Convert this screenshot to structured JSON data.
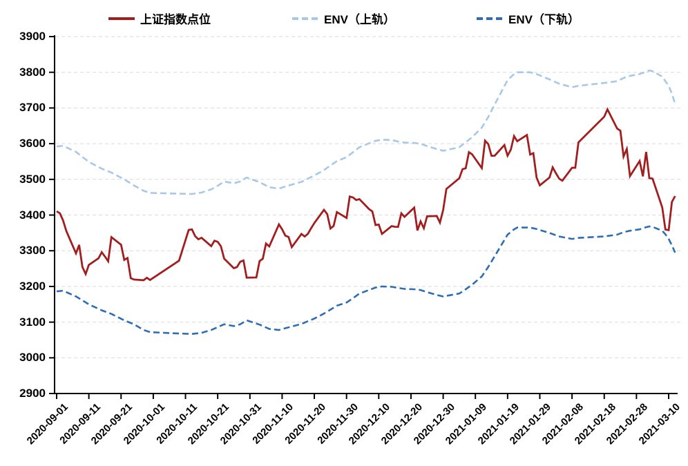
{
  "chart_data": {
    "type": "line",
    "title": "",
    "legend_position": "top",
    "grid": "horizontal-dashed",
    "background": "#ffffff",
    "gridline_color": "#d9d9d9",
    "axis_color": "#000000",
    "y_axis": {
      "min": 2900,
      "max": 3900,
      "step": 100,
      "tick_labels": [
        "3900",
        "3800",
        "3700",
        "3600",
        "3500",
        "3400",
        "3300",
        "3200",
        "3100",
        "3000",
        "2900"
      ]
    },
    "x_axis": {
      "tick_labels": [
        "2020-09-01",
        "2020-09-11",
        "2020-09-21",
        "2020-10-01",
        "2020-10-11",
        "2020-10-21",
        "2020-10-31",
        "2020-11-10",
        "2020-11-20",
        "2020-11-30",
        "2020-12-10",
        "2020-12-20",
        "2020-12-30",
        "2021-01-09",
        "2021-01-19",
        "2021-01-29",
        "2021-02-08",
        "2021-02-18",
        "2021-02-28",
        "2021-03-10"
      ],
      "label_rotation_deg": -45
    },
    "series": [
      {
        "name": "上证指数点位",
        "color": "#A21D1D",
        "style": "solid",
        "width": 2.8,
        "points": [
          [
            "2020-09-01",
            3410.6
          ],
          [
            "2020-09-02",
            3404.8
          ],
          [
            "2020-09-03",
            3385.0
          ],
          [
            "2020-09-04",
            3355.4
          ],
          [
            "2020-09-07",
            3292.6
          ],
          [
            "2020-09-08",
            3316.4
          ],
          [
            "2020-09-09",
            3254.6
          ],
          [
            "2020-09-10",
            3234.8
          ],
          [
            "2020-09-11",
            3260.4
          ],
          [
            "2020-09-14",
            3278.8
          ],
          [
            "2020-09-15",
            3295.7
          ],
          [
            "2020-09-16",
            3283.9
          ],
          [
            "2020-09-17",
            3270.4
          ],
          [
            "2020-09-18",
            3338.1
          ],
          [
            "2020-09-21",
            3316.9
          ],
          [
            "2020-09-22",
            3274.3
          ],
          [
            "2020-09-23",
            3279.7
          ],
          [
            "2020-09-24",
            3223.2
          ],
          [
            "2020-09-25",
            3219.4
          ],
          [
            "2020-09-28",
            3217.5
          ],
          [
            "2020-09-29",
            3224.4
          ],
          [
            "2020-09-30",
            3218.1
          ],
          [
            "2020-10-09",
            3272.1
          ],
          [
            "2020-10-12",
            3358.5
          ],
          [
            "2020-10-13",
            3359.8
          ],
          [
            "2020-10-14",
            3340.8
          ],
          [
            "2020-10-15",
            3332.2
          ],
          [
            "2020-10-16",
            3336.4
          ],
          [
            "2020-10-19",
            3312.7
          ],
          [
            "2020-10-20",
            3328.1
          ],
          [
            "2020-10-21",
            3325.0
          ],
          [
            "2020-10-22",
            3312.5
          ],
          [
            "2020-10-23",
            3278.0
          ],
          [
            "2020-10-26",
            3251.1
          ],
          [
            "2020-10-27",
            3254.3
          ],
          [
            "2020-10-28",
            3269.2
          ],
          [
            "2020-10-29",
            3272.7
          ],
          [
            "2020-10-30",
            3224.5
          ],
          [
            "2020-11-02",
            3225.1
          ],
          [
            "2020-11-03",
            3271.1
          ],
          [
            "2020-11-04",
            3277.4
          ],
          [
            "2020-11-05",
            3320.1
          ],
          [
            "2020-11-06",
            3312.2
          ],
          [
            "2020-11-09",
            3373.7
          ],
          [
            "2020-11-10",
            3360.2
          ],
          [
            "2020-11-11",
            3342.2
          ],
          [
            "2020-11-12",
            3338.7
          ],
          [
            "2020-11-13",
            3310.1
          ],
          [
            "2020-11-16",
            3347.0
          ],
          [
            "2020-11-17",
            3339.9
          ],
          [
            "2020-11-18",
            3347.3
          ],
          [
            "2020-11-19",
            3363.1
          ],
          [
            "2020-11-20",
            3377.7
          ],
          [
            "2020-11-23",
            3414.5
          ],
          [
            "2020-11-24",
            3402.8
          ],
          [
            "2020-11-25",
            3362.3
          ],
          [
            "2020-11-26",
            3369.7
          ],
          [
            "2020-11-27",
            3408.3
          ],
          [
            "2020-11-30",
            3391.8
          ],
          [
            "2020-12-01",
            3451.9
          ],
          [
            "2020-12-02",
            3449.4
          ],
          [
            "2020-12-03",
            3442.1
          ],
          [
            "2020-12-04",
            3444.6
          ],
          [
            "2020-12-07",
            3416.6
          ],
          [
            "2020-12-08",
            3410.2
          ],
          [
            "2020-12-09",
            3372.0
          ],
          [
            "2020-12-10",
            3373.3
          ],
          [
            "2020-12-11",
            3347.2
          ],
          [
            "2020-12-14",
            3369.1
          ],
          [
            "2020-12-15",
            3367.2
          ],
          [
            "2020-12-16",
            3367.0
          ],
          [
            "2020-12-17",
            3404.9
          ],
          [
            "2020-12-18",
            3394.9
          ],
          [
            "2020-12-21",
            3420.6
          ],
          [
            "2020-12-22",
            3356.8
          ],
          [
            "2020-12-23",
            3382.3
          ],
          [
            "2020-12-24",
            3363.1
          ],
          [
            "2020-12-25",
            3396.6
          ],
          [
            "2020-12-28",
            3397.3
          ],
          [
            "2020-12-29",
            3379.0
          ],
          [
            "2020-12-30",
            3414.5
          ],
          [
            "2020-12-31",
            3473.1
          ],
          [
            "2021-01-04",
            3503.0
          ],
          [
            "2021-01-05",
            3528.7
          ],
          [
            "2021-01-06",
            3530.9
          ],
          [
            "2021-01-07",
            3576.2
          ],
          [
            "2021-01-08",
            3570.1
          ],
          [
            "2021-01-11",
            3531.5
          ],
          [
            "2021-01-12",
            3608.3
          ],
          [
            "2021-01-13",
            3598.7
          ],
          [
            "2021-01-14",
            3565.9
          ],
          [
            "2021-01-15",
            3566.4
          ],
          [
            "2021-01-18",
            3596.2
          ],
          [
            "2021-01-19",
            3566.4
          ],
          [
            "2021-01-20",
            3583.1
          ],
          [
            "2021-01-21",
            3621.3
          ],
          [
            "2021-01-22",
            3606.8
          ],
          [
            "2021-01-25",
            3624.2
          ],
          [
            "2021-01-26",
            3569.4
          ],
          [
            "2021-01-27",
            3573.3
          ],
          [
            "2021-01-28",
            3505.2
          ],
          [
            "2021-01-29",
            3483.1
          ],
          [
            "2021-02-01",
            3505.3
          ],
          [
            "2021-02-02",
            3533.7
          ],
          [
            "2021-02-03",
            3517.3
          ],
          [
            "2021-02-04",
            3501.9
          ],
          [
            "2021-02-05",
            3496.3
          ],
          [
            "2021-02-08",
            3532.4
          ],
          [
            "2021-02-09",
            3532.5
          ],
          [
            "2021-02-10",
            3603.5
          ],
          [
            "2021-02-18",
            3675.4
          ],
          [
            "2021-02-19",
            3696.2
          ],
          [
            "2021-02-22",
            3642.4
          ],
          [
            "2021-02-23",
            3636.4
          ],
          [
            "2021-02-24",
            3564.1
          ],
          [
            "2021-02-25",
            3585.1
          ],
          [
            "2021-02-26",
            3509.1
          ],
          [
            "2021-03-01",
            3551.4
          ],
          [
            "2021-03-02",
            3508.6
          ],
          [
            "2021-03-03",
            3576.9
          ],
          [
            "2021-03-04",
            3503.5
          ],
          [
            "2021-03-05",
            3502.0
          ],
          [
            "2021-03-08",
            3421.4
          ],
          [
            "2021-03-09",
            3359.3
          ],
          [
            "2021-03-10",
            3357.7
          ],
          [
            "2021-03-11",
            3436.8
          ],
          [
            "2021-03-12",
            3453.1
          ]
        ]
      },
      {
        "name": "ENV（上轨）",
        "color": "#A8C8E8",
        "style": "dashed",
        "width": 2.6,
        "points": [
          [
            "2020-09-01",
            3592
          ],
          [
            "2020-09-03",
            3594
          ],
          [
            "2020-09-07",
            3577
          ],
          [
            "2020-09-11",
            3549
          ],
          [
            "2020-09-15",
            3530
          ],
          [
            "2020-09-18",
            3519
          ],
          [
            "2020-09-22",
            3500
          ],
          [
            "2020-09-25",
            3483
          ],
          [
            "2020-09-28",
            3468
          ],
          [
            "2020-09-30",
            3462
          ],
          [
            "2020-10-09",
            3460
          ],
          [
            "2020-10-13",
            3459
          ],
          [
            "2020-10-16",
            3463
          ],
          [
            "2020-10-19",
            3472
          ],
          [
            "2020-10-21",
            3482
          ],
          [
            "2020-10-23",
            3494
          ],
          [
            "2020-10-26",
            3489
          ],
          [
            "2020-10-28",
            3494
          ],
          [
            "2020-10-30",
            3505
          ],
          [
            "2020-11-03",
            3492
          ],
          [
            "2020-11-06",
            3478
          ],
          [
            "2020-11-09",
            3474
          ],
          [
            "2020-11-11",
            3480
          ],
          [
            "2020-11-16",
            3493
          ],
          [
            "2020-11-20",
            3511
          ],
          [
            "2020-11-23",
            3526
          ],
          [
            "2020-11-25",
            3539
          ],
          [
            "2020-11-27",
            3551
          ],
          [
            "2020-11-30",
            3562
          ],
          [
            "2020-12-02",
            3576
          ],
          [
            "2020-12-04",
            3590
          ],
          [
            "2020-12-07",
            3601
          ],
          [
            "2020-12-09",
            3608
          ],
          [
            "2020-12-11",
            3611
          ],
          [
            "2020-12-14",
            3610
          ],
          [
            "2020-12-16",
            3606
          ],
          [
            "2020-12-18",
            3603
          ],
          [
            "2020-12-21",
            3602
          ],
          [
            "2020-12-23",
            3600
          ],
          [
            "2020-12-25",
            3593
          ],
          [
            "2020-12-28",
            3585
          ],
          [
            "2020-12-30",
            3580
          ],
          [
            "2021-01-04",
            3590
          ],
          [
            "2021-01-06",
            3604
          ],
          [
            "2021-01-08",
            3618
          ],
          [
            "2021-01-11",
            3645
          ],
          [
            "2021-01-13",
            3675
          ],
          [
            "2021-01-15",
            3710
          ],
          [
            "2021-01-19",
            3778
          ],
          [
            "2021-01-21",
            3795
          ],
          [
            "2021-01-22",
            3800
          ],
          [
            "2021-01-26",
            3800
          ],
          [
            "2021-01-28",
            3795
          ],
          [
            "2021-02-01",
            3780
          ],
          [
            "2021-02-04",
            3768
          ],
          [
            "2021-02-08",
            3758
          ],
          [
            "2021-02-10",
            3762
          ],
          [
            "2021-02-18",
            3770
          ],
          [
            "2021-02-22",
            3775
          ],
          [
            "2021-02-24",
            3784
          ],
          [
            "2021-02-26",
            3790
          ],
          [
            "2021-03-01",
            3795
          ],
          [
            "2021-03-03",
            3802
          ],
          [
            "2021-03-04",
            3805
          ],
          [
            "2021-03-05",
            3803
          ],
          [
            "2021-03-08",
            3788
          ],
          [
            "2021-03-09",
            3775
          ],
          [
            "2021-03-10",
            3762
          ],
          [
            "2021-03-11",
            3740
          ],
          [
            "2021-03-12",
            3712
          ]
        ]
      },
      {
        "name": "ENV（下轨）",
        "color": "#2E6DB4",
        "style": "dashed",
        "width": 2.6,
        "points": [
          [
            "2020-09-01",
            3186
          ],
          [
            "2020-09-03",
            3188
          ],
          [
            "2020-09-07",
            3172
          ],
          [
            "2020-09-11",
            3150
          ],
          [
            "2020-09-15",
            3133
          ],
          [
            "2020-09-18",
            3123
          ],
          [
            "2020-09-22",
            3105
          ],
          [
            "2020-09-25",
            3094
          ],
          [
            "2020-09-28",
            3078
          ],
          [
            "2020-09-30",
            3072
          ],
          [
            "2020-10-09",
            3068
          ],
          [
            "2020-10-13",
            3067
          ],
          [
            "2020-10-16",
            3070
          ],
          [
            "2020-10-19",
            3078
          ],
          [
            "2020-10-21",
            3086
          ],
          [
            "2020-10-23",
            3094
          ],
          [
            "2020-10-26",
            3089
          ],
          [
            "2020-10-28",
            3094
          ],
          [
            "2020-10-30",
            3105
          ],
          [
            "2020-11-03",
            3093
          ],
          [
            "2020-11-06",
            3081
          ],
          [
            "2020-11-09",
            3078
          ],
          [
            "2020-11-11",
            3083
          ],
          [
            "2020-11-16",
            3095
          ],
          [
            "2020-11-20",
            3110
          ],
          [
            "2020-11-23",
            3124
          ],
          [
            "2020-11-25",
            3135
          ],
          [
            "2020-11-27",
            3146
          ],
          [
            "2020-11-30",
            3155
          ],
          [
            "2020-12-02",
            3167
          ],
          [
            "2020-12-04",
            3180
          ],
          [
            "2020-12-07",
            3190
          ],
          [
            "2020-12-09",
            3197
          ],
          [
            "2020-12-11",
            3200
          ],
          [
            "2020-12-14",
            3199
          ],
          [
            "2020-12-16",
            3196
          ],
          [
            "2020-12-18",
            3193
          ],
          [
            "2020-12-21",
            3192
          ],
          [
            "2020-12-23",
            3190
          ],
          [
            "2020-12-25",
            3184
          ],
          [
            "2020-12-28",
            3176
          ],
          [
            "2020-12-30",
            3172
          ],
          [
            "2021-01-04",
            3180
          ],
          [
            "2021-01-06",
            3192
          ],
          [
            "2021-01-08",
            3205
          ],
          [
            "2021-01-11",
            3228
          ],
          [
            "2021-01-13",
            3255
          ],
          [
            "2021-01-15",
            3285
          ],
          [
            "2021-01-19",
            3345
          ],
          [
            "2021-01-21",
            3360
          ],
          [
            "2021-01-22",
            3365
          ],
          [
            "2021-01-26",
            3365
          ],
          [
            "2021-01-28",
            3361
          ],
          [
            "2021-02-01",
            3350
          ],
          [
            "2021-02-04",
            3340
          ],
          [
            "2021-02-08",
            3333
          ],
          [
            "2021-02-10",
            3336
          ],
          [
            "2021-02-18",
            3340
          ],
          [
            "2021-02-22",
            3345
          ],
          [
            "2021-02-24",
            3352
          ],
          [
            "2021-02-26",
            3356
          ],
          [
            "2021-03-01",
            3360
          ],
          [
            "2021-03-03",
            3366
          ],
          [
            "2021-03-04",
            3368
          ],
          [
            "2021-03-05",
            3367
          ],
          [
            "2021-03-08",
            3356
          ],
          [
            "2021-03-09",
            3346
          ],
          [
            "2021-03-10",
            3333
          ],
          [
            "2021-03-11",
            3315
          ],
          [
            "2021-03-12",
            3295
          ]
        ]
      }
    ]
  }
}
